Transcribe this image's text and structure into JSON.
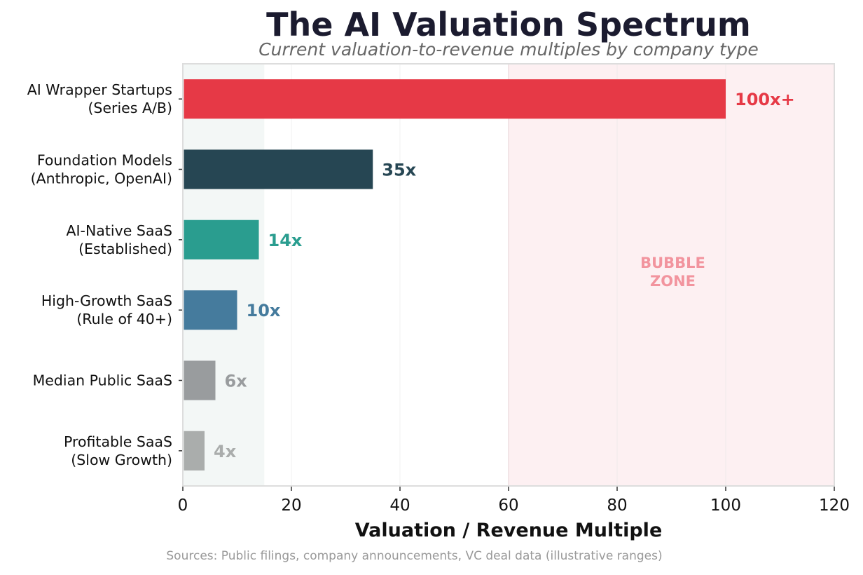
{
  "chart_data": {
    "type": "bar",
    "orientation": "horizontal",
    "title": "The AI Valuation Spectrum",
    "subtitle": "Current valuation-to-revenue multiples by company type",
    "xlabel": "Valuation / Revenue Multiple",
    "ylabel": "",
    "xlim": [
      0,
      120
    ],
    "xticks": [
      0,
      20,
      40,
      60,
      80,
      100,
      120
    ],
    "grid": "vertical",
    "categories": [
      [
        "AI Wrapper Startups",
        "(Series A/B)"
      ],
      [
        "Foundation Models",
        "(Anthropic, OpenAI)"
      ],
      [
        "AI-Native SaaS",
        "(Established)"
      ],
      [
        "High-Growth SaaS",
        "(Rule of 40+)"
      ],
      [
        "Median Public SaaS"
      ],
      [
        "Profitable SaaS",
        "(Slow Growth)"
      ]
    ],
    "values": [
      100,
      35,
      14,
      10,
      6,
      4
    ],
    "data_labels": [
      "100x+",
      "35x",
      "14x",
      "10x",
      "6x",
      "4x"
    ],
    "colors": [
      "#e63946",
      "#264653",
      "#2a9d8f",
      "#457b9d",
      "#999c9e",
      "#aaadac"
    ],
    "shaded_regions": [
      {
        "from": 0,
        "to": 15,
        "color": "#f3f7f6",
        "label": []
      },
      {
        "from": 60,
        "to": 120,
        "color": "#fdf0f2",
        "label": [
          "BUBBLE",
          "ZONE"
        ],
        "label_color": "#f2949e"
      }
    ],
    "source_note": "Sources: Public filings, company announcements, VC deal data (illustrative ranges)"
  }
}
